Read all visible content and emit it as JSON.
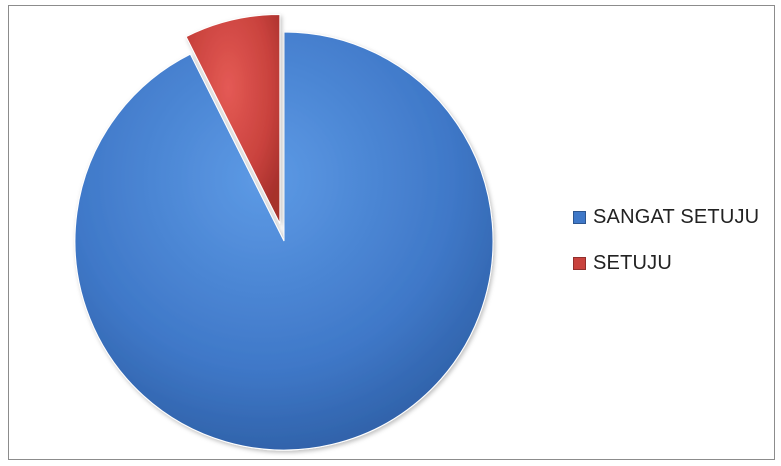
{
  "chart_data": {
    "type": "pie",
    "title": "",
    "legend_position": "right",
    "exploded_slice": "SETUJU",
    "start_angle_deg": 0,
    "direction": "clockwise",
    "series": [
      {
        "categories": [
          "SANGAT SETUJU",
          "SETUJU"
        ],
        "values": [
          92.6,
          7.4
        ]
      }
    ],
    "colors": [
      "#3f78c8",
      "#c9423d"
    ]
  },
  "legend": {
    "items": [
      {
        "label": "SANGAT SETUJU",
        "color": "#3f78c8"
      },
      {
        "label": "SETUJU",
        "color": "#c9423d"
      }
    ]
  }
}
